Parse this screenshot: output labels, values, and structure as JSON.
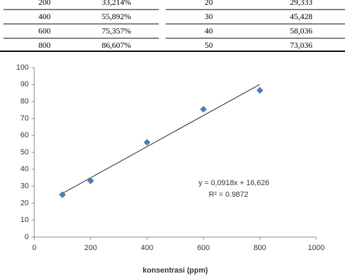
{
  "table": {
    "rows": [
      [
        "200",
        "33,214%",
        "20",
        "29,333"
      ],
      [
        "400",
        "55,892%",
        "30",
        "45,428"
      ],
      [
        "600",
        "75,357%",
        "40",
        "58,036"
      ],
      [
        "800",
        "86,607%",
        "50",
        "73,036"
      ]
    ]
  },
  "chart_data": {
    "type": "scatter",
    "x": [
      100,
      200,
      400,
      600,
      800
    ],
    "values": [
      25,
      33.2,
      55.9,
      75.4,
      86.6
    ],
    "color": "#4a7ebb",
    "trendline": {
      "x": [
        100,
        800
      ],
      "values": [
        25.8,
        90.1
      ],
      "color": "#222222"
    },
    "x_label": "konsentrasi (ppm)",
    "annotations": [
      "y = 0,0918x + 16,626",
      "R² = 0.9872"
    ],
    "xlim": [
      0,
      1000
    ],
    "xticks": [
      0,
      200,
      400,
      600,
      800,
      1000
    ],
    "ylim": [
      0,
      100
    ],
    "yticks": [
      0,
      10,
      20,
      30,
      40,
      50,
      60,
      70,
      80,
      90,
      100
    ],
    "grid": false
  }
}
